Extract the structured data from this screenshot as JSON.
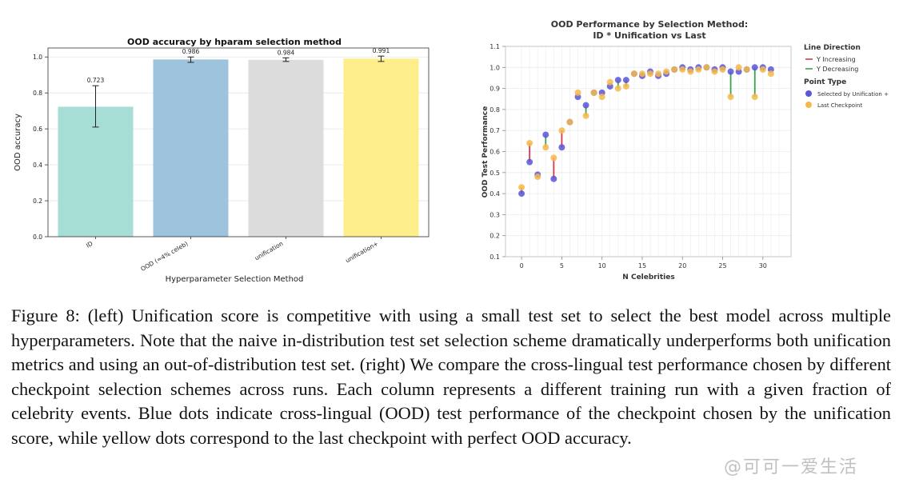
{
  "chart_data": [
    {
      "type": "bar",
      "title": "OOD accuracy by hparam selection method",
      "xlabel": "Hyperparameter Selection Method",
      "ylabel": "OOD accuracy",
      "ylim": [
        0,
        1.05
      ],
      "yticks": [
        0.0,
        0.2,
        0.4,
        0.6,
        0.8,
        1.0
      ],
      "ytick_labels": [
        "0.0",
        "0.2",
        "0.4",
        "0.6",
        "0.8",
        "1.0"
      ],
      "categories": [
        "ID",
        "OOD (≈4% celeb)",
        "unification",
        "unification+"
      ],
      "values": [
        0.723,
        0.986,
        0.984,
        0.991
      ],
      "value_labels": [
        "0.723",
        "0.986",
        "0.984",
        "0.991"
      ],
      "err_low": [
        0.61,
        0.97,
        0.975,
        0.975
      ],
      "err_high": [
        0.84,
        1.0,
        0.995,
        1.005
      ],
      "colors": [
        "#a6ddd4",
        "#9ec4dd",
        "#dcdcdc",
        "#fdee8a"
      ],
      "grid": true
    },
    {
      "type": "scatter",
      "title": [
        "OOD Performance by Selection Method:",
        "ID * Unification vs Last"
      ],
      "xlabel": "N Celebrities",
      "ylabel": "OOD Test Performance",
      "xlim": [
        -2,
        33.5
      ],
      "ylim": [
        0.1,
        1.1
      ],
      "xticks": [
        0,
        5,
        10,
        15,
        20,
        25,
        30
      ],
      "yticks": [
        0.1,
        0.2,
        0.3,
        0.4,
        0.5,
        0.6,
        0.7,
        0.8,
        0.9,
        1.0,
        1.1
      ],
      "ytick_labels": [
        "0.1",
        "0.2",
        "0.3",
        "0.4",
        "0.5",
        "0.6",
        "0.7",
        "0.8",
        "0.9",
        "1.0",
        "1.1"
      ],
      "grid": true,
      "legend_position": "right",
      "legend": {
        "line_title": "Line Direction",
        "line_items": [
          {
            "label": "Y Increasing",
            "color": "#e0364a"
          },
          {
            "label": "Y Decreasing",
            "color": "#3aa34a"
          }
        ],
        "point_title": "Point Type",
        "point_items": [
          {
            "label": "Selected by Unification +",
            "color": "#5b55d8"
          },
          {
            "label": "Last Checkpoint",
            "color": "#f5b84a"
          }
        ]
      },
      "series": [
        {
          "name": "Selected by Unification +",
          "color": "#5b55d8",
          "x": [
            0,
            1,
            2,
            3,
            4,
            5,
            6,
            7,
            8,
            9,
            10,
            11,
            12,
            13,
            14,
            15,
            16,
            17,
            18,
            19,
            20,
            21,
            22,
            23,
            24,
            25,
            26,
            27,
            28,
            29,
            30,
            31
          ],
          "y": [
            0.4,
            0.55,
            0.49,
            0.68,
            0.47,
            0.62,
            0.74,
            0.86,
            0.82,
            0.88,
            0.88,
            0.91,
            0.94,
            0.94,
            0.97,
            0.96,
            0.98,
            0.96,
            0.97,
            0.99,
            1.0,
            0.99,
            1.0,
            1.0,
            0.99,
            1.0,
            0.98,
            0.98,
            0.99,
            1.0,
            1.0,
            0.99
          ]
        },
        {
          "name": "Last Checkpoint",
          "color": "#f5b84a",
          "x": [
            0,
            1,
            2,
            3,
            4,
            5,
            6,
            7,
            8,
            9,
            10,
            11,
            12,
            13,
            14,
            15,
            16,
            17,
            18,
            19,
            20,
            21,
            22,
            23,
            24,
            25,
            26,
            27,
            28,
            29,
            30,
            31
          ],
          "y": [
            0.43,
            0.64,
            0.48,
            0.62,
            0.57,
            0.7,
            0.74,
            0.88,
            0.77,
            0.88,
            0.86,
            0.93,
            0.9,
            0.91,
            0.97,
            0.97,
            0.97,
            0.97,
            0.98,
            0.99,
            0.99,
            0.98,
            0.99,
            1.0,
            0.98,
            0.99,
            0.86,
            1.0,
            0.99,
            0.86,
            0.99,
            0.97
          ]
        }
      ]
    }
  ],
  "caption": "Figure 8: (left) Unification score is competitive with using a small test set to select the best model across multiple hyperparameters. Note that the naive in-distribution test set selection scheme dramatically underperforms both unification metrics and using an out-of-distribution test set. (right) We compare the cross-lingual test performance chosen by different checkpoint selection schemes across runs. Each column represents a different training run with a given fraction of celebrity events. Blue dots indicate cross-lingual (OOD) test performance of the checkpoint chosen by the unification score, while yellow dots correspond to the last checkpoint with perfect OOD accuracy.",
  "watermark": "@可可一爱生活"
}
